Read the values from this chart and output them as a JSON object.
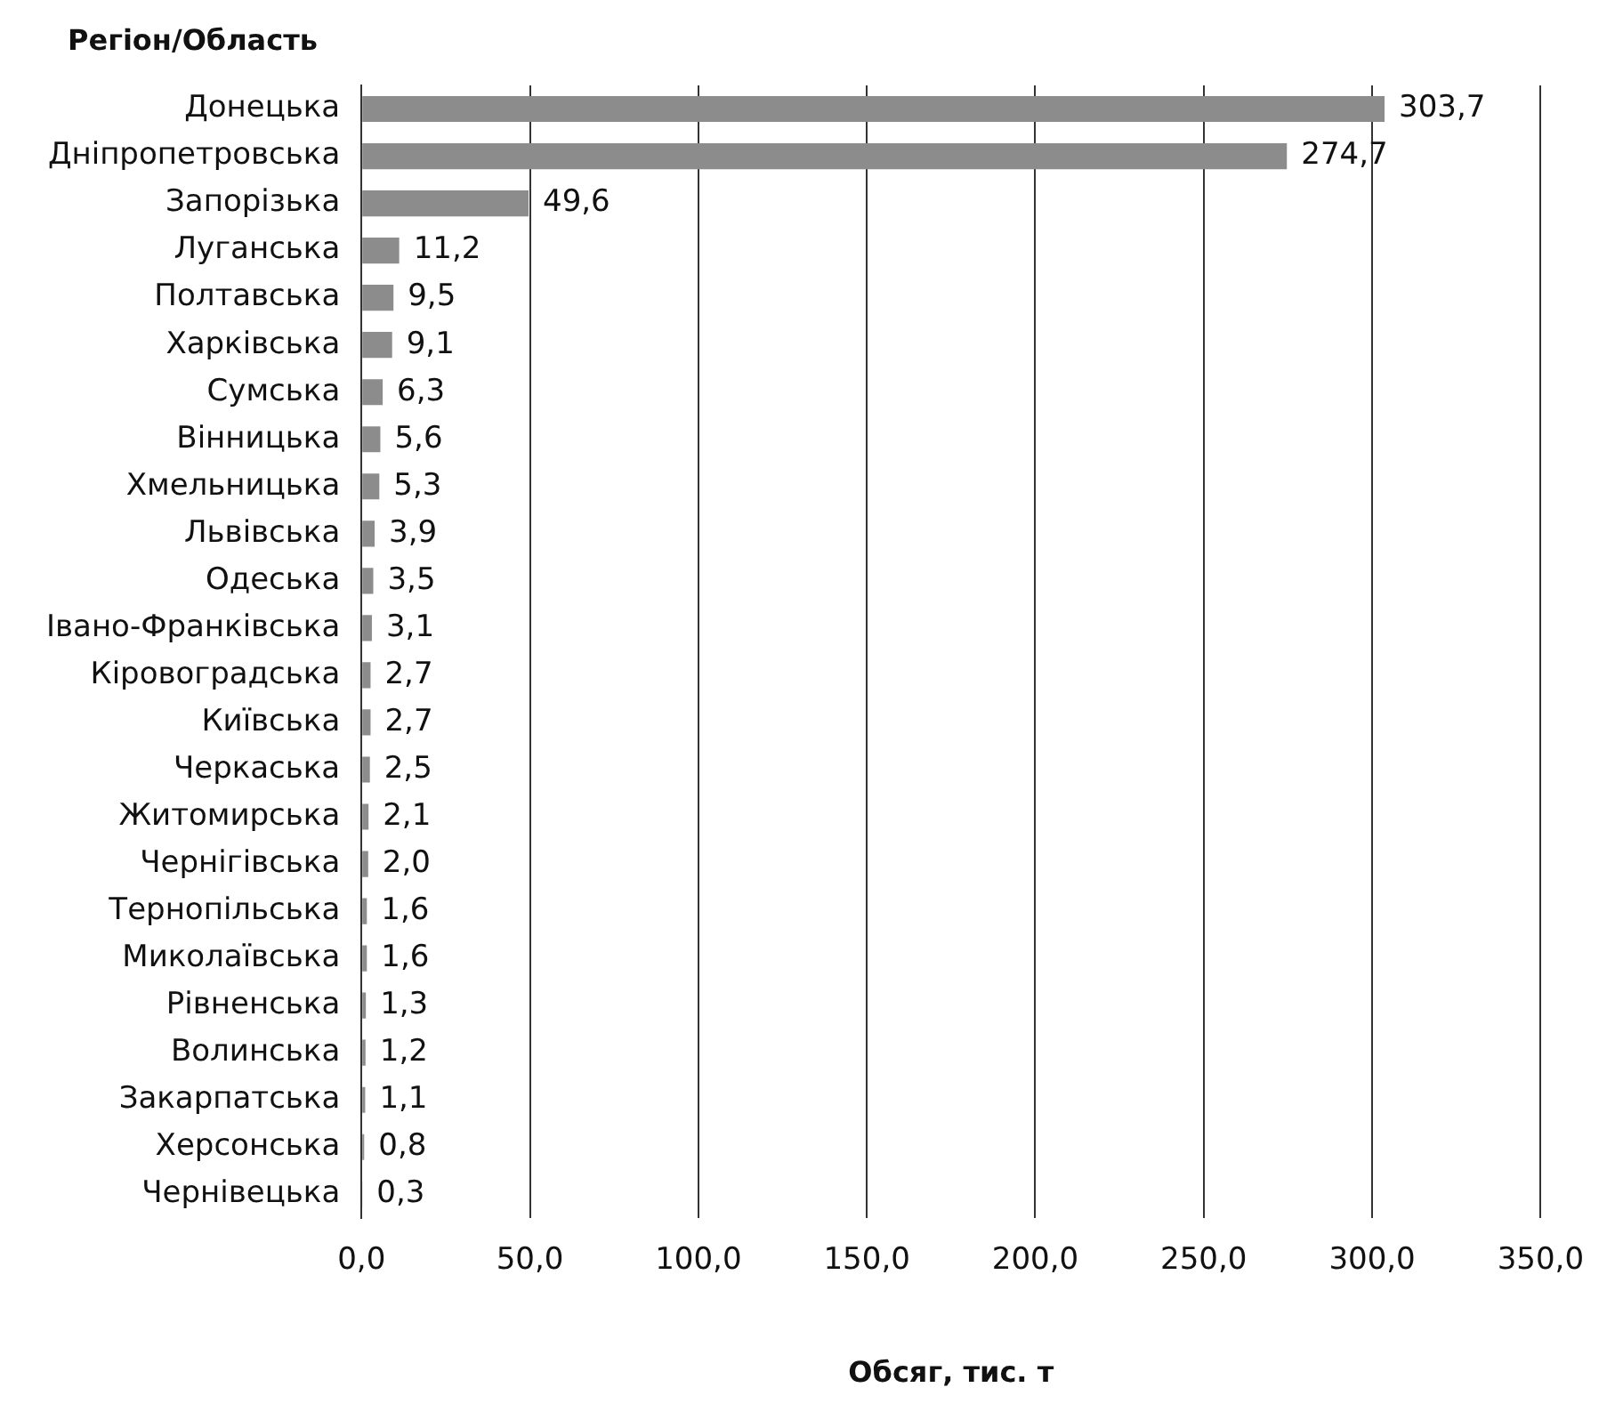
{
  "chart_data": {
    "type": "bar",
    "orientation": "horizontal",
    "ylabel": "Регіон/Область",
    "xlabel": "Обсяг, тис. т",
    "categories": [
      "Донецька",
      "Дніпропетровська",
      "Запорізька",
      "Луганська",
      "Полтавська",
      "Харківська",
      "Сумська",
      "Вінницька",
      "Хмельницька",
      "Львівська",
      "Одеська",
      "Івано-Франківська",
      "Кіровоградська",
      "Київська",
      "Черкаська",
      "Житомирська",
      "Чернігівська",
      "Тернопільська",
      "Миколаївська",
      "Рівненська",
      "Волинська",
      "Закарпатська",
      "Херсонська",
      "Чернівецька"
    ],
    "values": [
      303.7,
      274.7,
      49.6,
      11.2,
      9.5,
      9.1,
      6.3,
      5.6,
      5.3,
      3.9,
      3.5,
      3.1,
      2.7,
      2.7,
      2.5,
      2.1,
      2.0,
      1.6,
      1.6,
      1.3,
      1.2,
      1.1,
      0.8,
      0.3
    ],
    "value_labels": [
      "303,7",
      "274,7",
      "49,6",
      "11,2",
      "9,5",
      "9,1",
      "6,3",
      "5,6",
      "5,3",
      "3,9",
      "3,5",
      "3,1",
      "2,7",
      "2,7",
      "2,5",
      "2,1",
      "2,0",
      "1,6",
      "1,6",
      "1,3",
      "1,2",
      "1,1",
      "0,8",
      "0,3"
    ],
    "color": "#8c8c8c",
    "xlim": [
      0,
      350
    ],
    "xticks": [
      {
        "value": 0,
        "label": "0,0"
      },
      {
        "value": 50,
        "label": "50,0"
      },
      {
        "value": 100,
        "label": "100,0"
      },
      {
        "value": 150,
        "label": "150,0"
      },
      {
        "value": 200,
        "label": "200,0"
      },
      {
        "value": 250,
        "label": "250,0"
      },
      {
        "value": 300,
        "label": "300,0"
      },
      {
        "value": 350,
        "label": "350,0"
      }
    ],
    "grid": "x",
    "legend": false
  }
}
